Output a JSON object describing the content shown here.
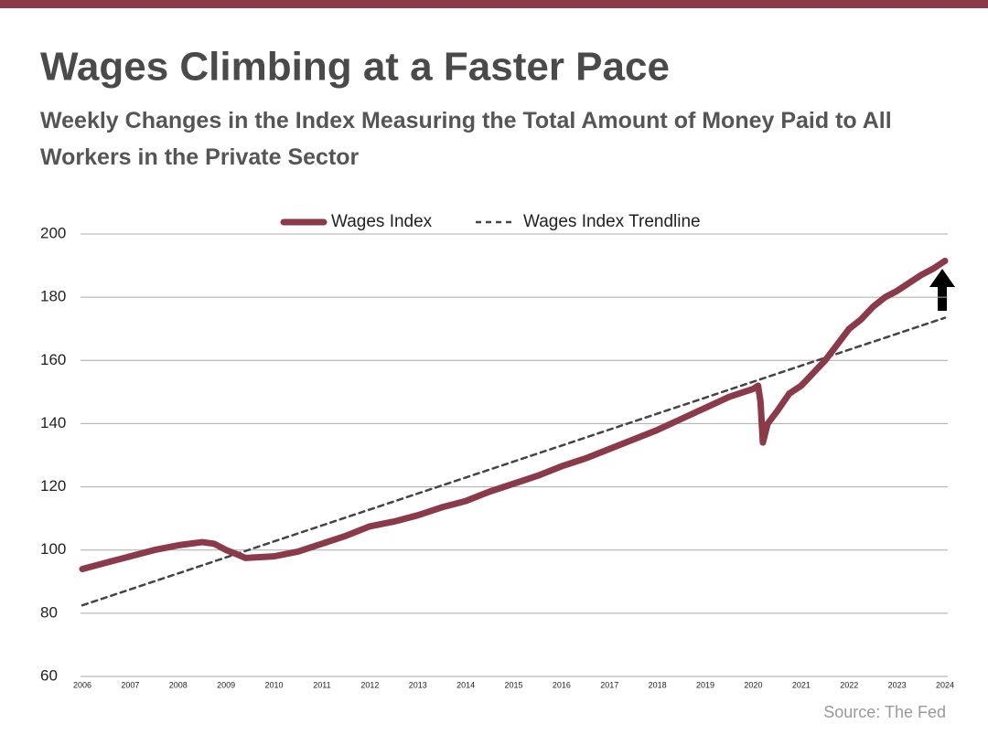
{
  "header": {
    "title": "Wages Climbing at a Faster Pace",
    "subtitle": "Weekly Changes in the Index Measuring the Total Amount of Money Paid to All Workers in the Private Sector"
  },
  "chart_data": {
    "type": "line",
    "xlim": [
      2006,
      2024
    ],
    "xticks": [
      2006,
      2007,
      2008,
      2009,
      2010,
      2011,
      2012,
      2013,
      2014,
      2015,
      2016,
      2017,
      2018,
      2019,
      2020,
      2021,
      2022,
      2023,
      2024
    ],
    "ylim": [
      60,
      200
    ],
    "yticks": [
      60,
      80,
      100,
      120,
      140,
      160,
      180,
      200
    ],
    "grid": true,
    "legend": "top",
    "series": [
      {
        "name": "Wages Index",
        "color": "#8b3a4a",
        "style": "solid",
        "x": [
          2006.0,
          2006.5,
          2007.0,
          2007.5,
          2008.0,
          2008.5,
          2008.75,
          2009.0,
          2009.25,
          2009.4,
          2010.0,
          2010.5,
          2011.0,
          2011.5,
          2012.0,
          2012.5,
          2013.0,
          2013.5,
          2014.0,
          2014.5,
          2015.0,
          2015.5,
          2016.0,
          2016.5,
          2017.0,
          2017.5,
          2018.0,
          2018.5,
          2019.0,
          2019.5,
          2020.0,
          2020.1,
          2020.15,
          2020.2,
          2020.3,
          2020.5,
          2020.75,
          2021.0,
          2021.25,
          2021.5,
          2021.75,
          2022.0,
          2022.25,
          2022.5,
          2022.75,
          2023.0,
          2023.25,
          2023.5,
          2023.75,
          2024.0
        ],
        "values": [
          94,
          96,
          98,
          100,
          101.5,
          102.5,
          102,
          100,
          98.5,
          97.5,
          98,
          99.5,
          102,
          104.5,
          107.5,
          109,
          111,
          113.5,
          115.5,
          118.5,
          121,
          123.5,
          126.5,
          129,
          132,
          135,
          138,
          141.5,
          145,
          148.5,
          151,
          152,
          147,
          134,
          140,
          144,
          149.5,
          152,
          156,
          160,
          165,
          170,
          173,
          177,
          180,
          182,
          184.5,
          187,
          189,
          191.5
        ]
      },
      {
        "name": "Wages Index Trendline",
        "color": "#444444",
        "style": "dashed",
        "x": [
          2006,
          2024
        ],
        "values": [
          82.5,
          173.5
        ]
      }
    ]
  },
  "footer": {
    "source": "Source: The Fed"
  }
}
